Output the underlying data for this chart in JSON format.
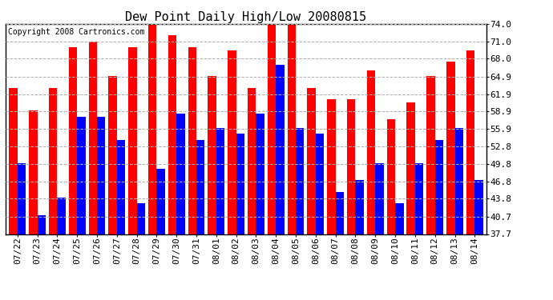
{
  "title": "Dew Point Daily High/Low 20080815",
  "copyright": "Copyright 2008 Cartronics.com",
  "dates": [
    "07/22",
    "07/23",
    "07/24",
    "07/25",
    "07/26",
    "07/27",
    "07/28",
    "07/29",
    "07/30",
    "07/31",
    "08/01",
    "08/02",
    "08/03",
    "08/04",
    "08/05",
    "08/06",
    "08/07",
    "08/08",
    "08/09",
    "08/10",
    "08/11",
    "08/12",
    "08/13",
    "08/14"
  ],
  "highs": [
    63.0,
    59.0,
    63.0,
    70.0,
    71.0,
    65.0,
    70.0,
    75.0,
    72.0,
    70.0,
    65.0,
    69.5,
    63.0,
    74.0,
    74.0,
    63.0,
    61.0,
    61.0,
    66.0,
    57.5,
    60.5,
    65.0,
    67.5,
    69.5
  ],
  "lows": [
    50.0,
    41.0,
    44.0,
    58.0,
    58.0,
    54.0,
    43.0,
    49.0,
    58.5,
    54.0,
    56.0,
    55.0,
    58.5,
    67.0,
    56.0,
    55.0,
    45.0,
    47.0,
    50.0,
    43.0,
    50.0,
    54.0,
    56.0,
    47.0
  ],
  "high_color": "#ff0000",
  "low_color": "#0000ff",
  "background_color": "#ffffff",
  "grid_color": "#b0b0b0",
  "ylim_min": 37.7,
  "ylim_max": 74.0,
  "yticks": [
    37.7,
    40.7,
    43.8,
    46.8,
    49.8,
    52.8,
    55.9,
    58.9,
    61.9,
    64.9,
    68.0,
    71.0,
    74.0
  ],
  "bar_width": 0.42,
  "title_fontsize": 11,
  "tick_fontsize": 8,
  "copyright_fontsize": 7
}
